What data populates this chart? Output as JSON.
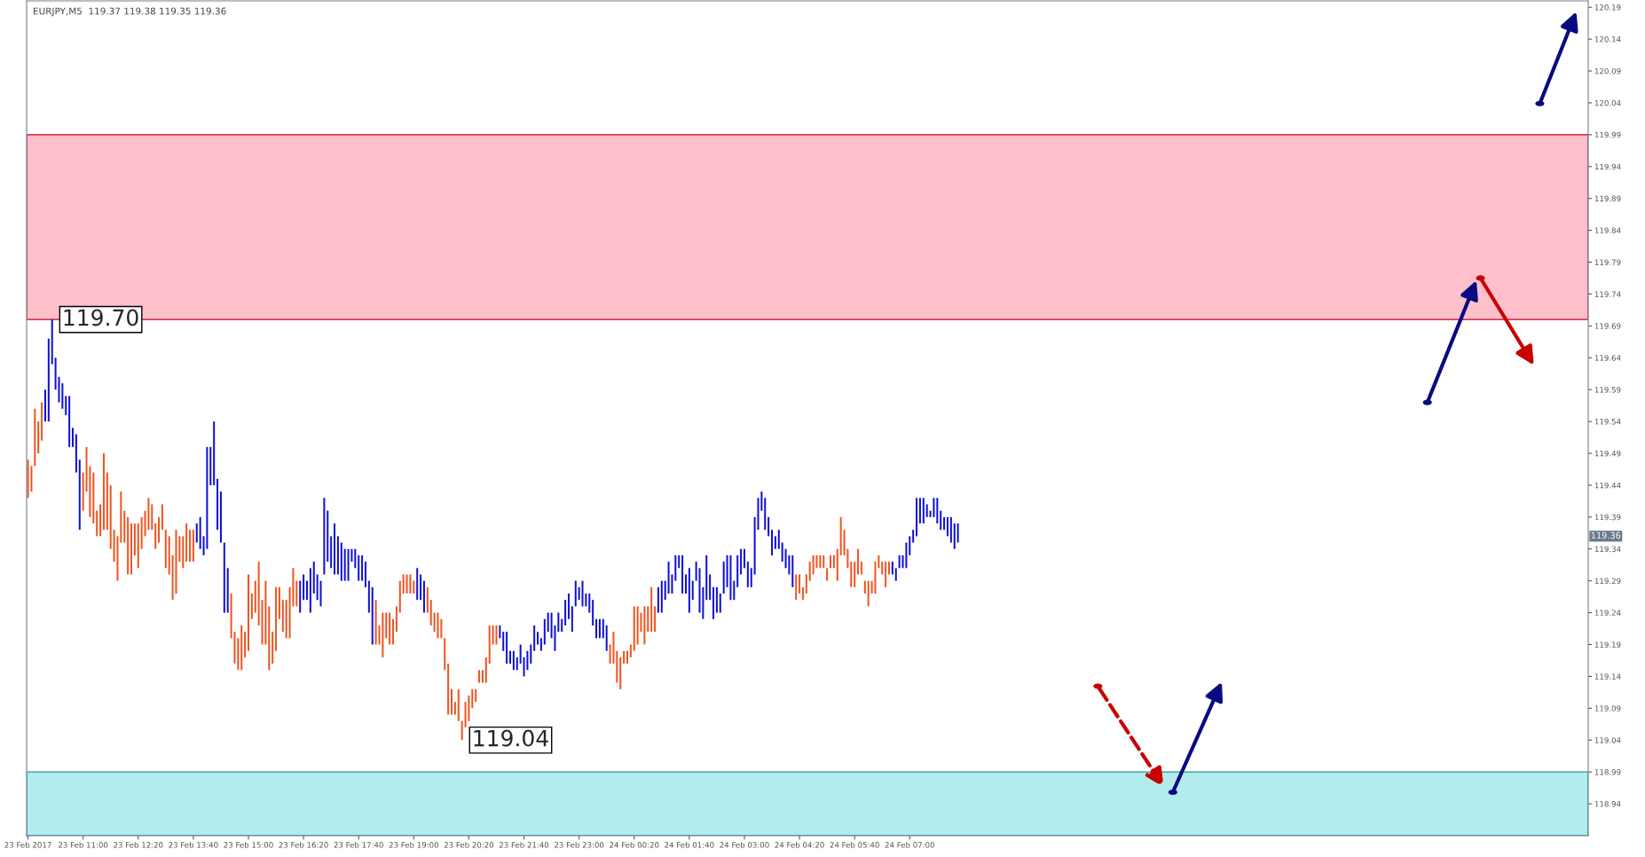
{
  "chart_data": {
    "type": "bar",
    "title": "EURJPY,M5  119.37 119.38 119.35 119.36",
    "ylim": [
      118.89,
      120.2
    ],
    "yticks": [
      118.94,
      118.99,
      119.04,
      119.09,
      119.14,
      119.19,
      119.24,
      119.29,
      119.34,
      119.39,
      119.44,
      119.49,
      119.54,
      119.59,
      119.64,
      119.69,
      119.74,
      119.79,
      119.84,
      119.89,
      119.94,
      119.99,
      120.04,
      120.09,
      120.14,
      120.19
    ],
    "xlim": [
      "2017-02-23T09:38",
      "2017-02-24T23:25"
    ],
    "xticks": [
      {
        "value": "2017-02-23T09:40",
        "label": "23 Feb 2017"
      },
      {
        "value": "2017-02-23T11:00",
        "label": "23 Feb 11:00"
      },
      {
        "value": "2017-02-23T12:20",
        "label": "23 Feb 12:20"
      },
      {
        "value": "2017-02-23T13:40",
        "label": "23 Feb 13:40"
      },
      {
        "value": "2017-02-23T15:00",
        "label": "23 Feb 15:00"
      },
      {
        "value": "2017-02-23T16:20",
        "label": "23 Feb 16:20"
      },
      {
        "value": "2017-02-23T17:40",
        "label": "23 Feb 17:40"
      },
      {
        "value": "2017-02-23T19:00",
        "label": "23 Feb 19:00"
      },
      {
        "value": "2017-02-23T20:20",
        "label": "23 Feb 20:20"
      },
      {
        "value": "2017-02-23T21:40",
        "label": "23 Feb 21:40"
      },
      {
        "value": "2017-02-23T23:00",
        "label": "23 Feb 23:00"
      },
      {
        "value": "2017-02-24T00:20",
        "label": "24 Feb 00:20"
      },
      {
        "value": "2017-02-24T01:40",
        "label": "24 Feb 01:40"
      },
      {
        "value": "2017-02-24T03:00",
        "label": "24 Feb 03:00"
      },
      {
        "value": "2017-02-24T04:20",
        "label": "24 Feb 04:20"
      },
      {
        "value": "2017-02-24T05:40",
        "label": "24 Feb 05:40"
      },
      {
        "value": "2017-02-24T07:00",
        "label": "24 Feb 07:00"
      }
    ],
    "bands": [
      {
        "axis": "y",
        "from": 119.7,
        "to": 119.99,
        "color": "#ffc0cb"
      },
      {
        "axis": "y",
        "from": 118.89,
        "to": 118.99,
        "color": "#b2ecee"
      }
    ],
    "annotations": [
      {
        "text": "119.70",
        "x": "2017-02-23T10:15",
        "y": 119.7
      },
      {
        "text": "119.04",
        "x": "2017-02-23T20:10",
        "y": 119.04
      },
      {
        "text": "119.36",
        "y": 119.36
      }
    ],
    "series": [
      {
        "color": "#ee5522",
        "x": [
          "2017-02-23T09:40",
          "2017-02-23T09:45",
          "2017-02-23T09:50",
          "2017-02-23T09:55",
          "2017-02-23T10:00"
        ],
        "base": [
          119.42,
          119.43,
          119.47,
          119.49,
          119.51
        ],
        "values": [
          0.06,
          0.04,
          0.09,
          0.05,
          0.06
        ]
      },
      {
        "color": "#1010d8",
        "x": [
          "2017-02-23T10:05",
          "2017-02-23T10:10",
          "2017-02-23T10:15",
          "2017-02-23T10:20",
          "2017-02-23T10:25",
          "2017-02-23T10:30",
          "2017-02-23T10:35",
          "2017-02-23T10:40",
          "2017-02-23T10:45",
          "2017-02-23T10:50",
          "2017-02-23T10:55"
        ],
        "base": [
          119.54,
          119.54,
          119.63,
          119.59,
          119.57,
          119.56,
          119.55,
          119.5,
          119.5,
          119.46,
          119.37
        ],
        "values": [
          0.05,
          0.13,
          0.07,
          0.05,
          0.04,
          0.04,
          0.03,
          0.08,
          0.03,
          0.06,
          0.11
        ]
      },
      {
        "color": "#ee5522",
        "x": [
          "2017-02-23T11:00",
          "2017-02-23T11:05",
          "2017-02-23T11:10",
          "2017-02-23T11:15",
          "2017-02-23T11:20",
          "2017-02-23T11:25",
          "2017-02-23T11:30",
          "2017-02-23T11:35",
          "2017-02-23T11:40",
          "2017-02-23T11:45",
          "2017-02-23T11:50",
          "2017-02-23T11:55",
          "2017-02-23T12:00",
          "2017-02-23T12:05",
          "2017-02-23T12:10",
          "2017-02-23T12:15",
          "2017-02-23T12:20",
          "2017-02-23T12:25",
          "2017-02-23T12:30",
          "2017-02-23T12:35",
          "2017-02-23T12:40",
          "2017-02-23T12:45",
          "2017-02-23T12:50",
          "2017-02-23T12:55",
          "2017-02-23T13:00",
          "2017-02-23T13:05",
          "2017-02-23T13:10",
          "2017-02-23T13:15",
          "2017-02-23T13:20",
          "2017-02-23T13:25",
          "2017-02-23T13:30",
          "2017-02-23T13:35",
          "2017-02-23T13:40"
        ],
        "base": [
          119.4,
          119.43,
          119.39,
          119.38,
          119.36,
          119.36,
          119.37,
          119.37,
          119.34,
          119.32,
          119.29,
          119.35,
          119.35,
          119.3,
          119.3,
          119.33,
          119.31,
          119.34,
          119.36,
          119.37,
          119.37,
          119.34,
          119.35,
          119.37,
          119.31,
          119.3,
          119.26,
          119.27,
          119.32,
          119.31,
          119.32,
          119.32,
          119.32
        ],
        "values": [
          0.06,
          0.07,
          0.08,
          0.08,
          0.04,
          0.05,
          0.12,
          0.09,
          0.1,
          0.05,
          0.07,
          0.08,
          0.05,
          0.09,
          0.08,
          0.05,
          0.07,
          0.05,
          0.04,
          0.05,
          0.04,
          0.04,
          0.04,
          0.04,
          0.06,
          0.06,
          0.07,
          0.1,
          0.04,
          0.05,
          0.06,
          0.05,
          0.05
        ]
      },
      {
        "color": "#1010d8",
        "x": [
          "2017-02-23T13:45",
          "2017-02-23T13:50",
          "2017-02-23T13:55",
          "2017-02-23T14:00",
          "2017-02-23T14:05",
          "2017-02-23T14:10",
          "2017-02-23T14:15",
          "2017-02-23T14:20",
          "2017-02-23T14:25",
          "2017-02-23T14:30"
        ],
        "base": [
          119.35,
          119.34,
          119.33,
          119.34,
          119.44,
          119.44,
          119.37,
          119.35,
          119.24,
          119.24
        ],
        "values": [
          0.03,
          0.05,
          0.03,
          0.16,
          0.06,
          0.1,
          0.08,
          0.08,
          0.11,
          0.07
        ]
      },
      {
        "color": "#ee5522",
        "x": [
          "2017-02-23T14:35",
          "2017-02-23T14:40",
          "2017-02-23T14:45",
          "2017-02-23T14:50",
          "2017-02-23T14:55",
          "2017-02-23T15:00",
          "2017-02-23T15:05",
          "2017-02-23T15:10",
          "2017-02-23T15:15",
          "2017-02-23T15:20",
          "2017-02-23T15:25",
          "2017-02-23T15:30",
          "2017-02-23T15:35",
          "2017-02-23T15:40",
          "2017-02-23T15:45",
          "2017-02-23T15:50",
          "2017-02-23T15:55",
          "2017-02-23T16:00",
          "2017-02-23T16:05",
          "2017-02-23T16:10"
        ],
        "base": [
          119.2,
          119.16,
          119.15,
          119.15,
          119.17,
          119.18,
          119.23,
          119.24,
          119.22,
          119.19,
          119.19,
          119.15,
          119.16,
          119.18,
          119.23,
          119.21,
          119.2,
          119.2,
          119.25,
          119.25
        ],
        "values": [
          0.07,
          0.05,
          0.05,
          0.07,
          0.04,
          0.12,
          0.04,
          0.05,
          0.1,
          0.07,
          0.1,
          0.1,
          0.05,
          0.1,
          0.05,
          0.05,
          0.06,
          0.08,
          0.06,
          0.04
        ]
      },
      {
        "color": "#1010d8",
        "x": [
          "2017-02-23T16:15",
          "2017-02-23T16:20",
          "2017-02-23T16:25",
          "2017-02-23T16:30",
          "2017-02-23T16:35",
          "2017-02-23T16:40",
          "2017-02-23T16:45",
          "2017-02-23T16:50",
          "2017-02-23T16:55",
          "2017-02-23T17:00",
          "2017-02-23T17:05",
          "2017-02-23T17:10",
          "2017-02-23T17:15",
          "2017-02-23T17:20",
          "2017-02-23T17:25",
          "2017-02-23T17:30",
          "2017-02-23T17:35",
          "2017-02-23T17:40",
          "2017-02-23T17:45",
          "2017-02-23T17:50",
          "2017-02-23T17:55",
          "2017-02-23T18:00"
        ],
        "base": [
          119.24,
          119.26,
          119.26,
          119.24,
          119.27,
          119.26,
          119.25,
          119.3,
          119.32,
          119.31,
          119.3,
          119.3,
          119.29,
          119.29,
          119.29,
          119.32,
          119.31,
          119.29,
          119.29,
          119.28,
          119.24,
          119.19
        ],
        "values": [
          0.05,
          0.04,
          0.03,
          0.07,
          0.05,
          0.04,
          0.04,
          0.12,
          0.08,
          0.05,
          0.08,
          0.06,
          0.06,
          0.05,
          0.05,
          0.02,
          0.03,
          0.04,
          0.04,
          0.04,
          0.05,
          0.09
        ]
      },
      {
        "color": "#ee5522",
        "x": [
          "2017-02-23T18:05",
          "2017-02-23T18:10",
          "2017-02-23T18:15",
          "2017-02-23T18:20",
          "2017-02-23T18:25",
          "2017-02-23T18:30",
          "2017-02-23T18:35",
          "2017-02-23T18:40",
          "2017-02-23T18:45",
          "2017-02-23T18:50",
          "2017-02-23T18:55",
          "2017-02-23T19:00"
        ],
        "base": [
          119.19,
          119.19,
          119.17,
          119.2,
          119.19,
          119.19,
          119.21,
          119.24,
          119.27,
          119.27,
          119.27,
          119.27
        ],
        "values": [
          0.07,
          0.03,
          0.07,
          0.04,
          0.05,
          0.04,
          0.04,
          0.05,
          0.03,
          0.03,
          0.03,
          0.02
        ]
      },
      {
        "color": "#1010d8",
        "x": [
          "2017-02-23T19:05",
          "2017-02-23T19:10",
          "2017-02-23T19:15"
        ],
        "base": [
          119.26,
          119.26,
          119.24
        ],
        "values": [
          0.05,
          0.04,
          0.05
        ]
      },
      {
        "color": "#ee5522",
        "x": [
          "2017-02-23T19:20",
          "2017-02-23T19:25",
          "2017-02-23T19:30",
          "2017-02-23T19:35",
          "2017-02-23T19:40",
          "2017-02-23T19:45",
          "2017-02-23T19:50",
          "2017-02-23T19:55",
          "2017-02-23T20:00",
          "2017-02-23T20:05",
          "2017-02-23T20:10",
          "2017-02-23T20:15",
          "2017-02-23T20:20",
          "2017-02-23T20:25",
          "2017-02-23T20:30",
          "2017-02-23T20:35",
          "2017-02-23T20:40",
          "2017-02-23T20:45",
          "2017-02-23T20:50",
          "2017-02-23T20:55",
          "2017-02-23T21:00"
        ],
        "base": [
          119.24,
          119.22,
          119.21,
          119.2,
          119.2,
          119.15,
          119.08,
          119.08,
          119.08,
          119.07,
          119.04,
          119.06,
          119.07,
          119.09,
          119.1,
          119.13,
          119.13,
          119.13,
          119.16,
          119.19,
          119.19
        ],
        "values": [
          0.04,
          0.04,
          0.03,
          0.04,
          0.03,
          0.05,
          0.08,
          0.04,
          0.02,
          0.05,
          0.03,
          0.04,
          0.04,
          0.03,
          0.02,
          0.02,
          0.02,
          0.04,
          0.06,
          0.03,
          0.03
        ]
      },
      {
        "color": "#1010d8",
        "x": [
          "2017-02-23T21:05",
          "2017-02-23T21:10",
          "2017-02-23T21:15",
          "2017-02-23T21:20",
          "2017-02-23T21:25",
          "2017-02-23T21:30",
          "2017-02-23T21:35",
          "2017-02-23T21:40",
          "2017-02-23T21:45",
          "2017-02-23T21:50",
          "2017-02-23T21:55",
          "2017-02-23T22:00",
          "2017-02-23T22:05",
          "2017-02-23T22:10",
          "2017-02-23T22:15",
          "2017-02-23T22:20",
          "2017-02-23T22:25",
          "2017-02-23T22:30",
          "2017-02-23T22:35",
          "2017-02-23T22:40",
          "2017-02-23T22:45",
          "2017-02-23T22:50",
          "2017-02-23T22:55",
          "2017-02-23T23:00",
          "2017-02-23T23:05",
          "2017-02-23T23:10",
          "2017-02-23T23:15",
          "2017-02-23T23:20",
          "2017-02-23T23:25",
          "2017-02-23T23:30",
          "2017-02-23T23:35",
          "2017-02-23T23:40"
        ],
        "base": [
          119.2,
          119.18,
          119.16,
          119.16,
          119.15,
          119.15,
          119.16,
          119.14,
          119.15,
          119.16,
          119.18,
          119.19,
          119.18,
          119.19,
          119.21,
          119.2,
          119.18,
          119.21,
          119.21,
          119.22,
          119.23,
          119.21,
          119.25,
          119.26,
          119.25,
          119.25,
          119.24,
          119.22,
          119.2,
          119.2,
          119.2,
          119.18
        ],
        "values": [
          0.02,
          0.03,
          0.05,
          0.02,
          0.03,
          0.02,
          0.03,
          0.03,
          0.03,
          0.03,
          0.04,
          0.02,
          0.02,
          0.04,
          0.03,
          0.04,
          0.04,
          0.03,
          0.02,
          0.04,
          0.04,
          0.04,
          0.04,
          0.02,
          0.04,
          0.02,
          0.03,
          0.04,
          0.03,
          0.03,
          0.03,
          0.04
        ]
      },
      {
        "color": "#ee5522",
        "x": [
          "2017-02-23T23:45",
          "2017-02-23T23:50",
          "2017-02-23T23:55",
          "2017-02-24T00:00",
          "2017-02-24T00:05",
          "2017-02-24T00:10",
          "2017-02-24T00:15",
          "2017-02-24T00:20",
          "2017-02-24T00:25",
          "2017-02-24T00:30",
          "2017-02-24T00:35",
          "2017-02-24T00:40",
          "2017-02-24T00:45",
          "2017-02-24T00:50"
        ],
        "base": [
          119.16,
          119.16,
          119.13,
          119.12,
          119.16,
          119.16,
          119.17,
          119.18,
          119.19,
          119.21,
          119.19,
          119.21,
          119.21,
          119.21
        ],
        "values": [
          0.03,
          0.05,
          0.05,
          0.05,
          0.02,
          0.02,
          0.02,
          0.07,
          0.06,
          0.03,
          0.06,
          0.04,
          0.07,
          0.04
        ]
      },
      {
        "color": "#1010d8",
        "x": [
          "2017-02-24T00:55",
          "2017-02-24T01:00",
          "2017-02-24T01:05",
          "2017-02-24T01:10",
          "2017-02-24T01:15",
          "2017-02-24T01:20",
          "2017-02-24T01:25",
          "2017-02-24T01:30",
          "2017-02-24T01:35",
          "2017-02-24T01:40",
          "2017-02-24T01:45",
          "2017-02-24T01:50",
          "2017-02-24T01:55",
          "2017-02-24T02:00",
          "2017-02-24T02:05",
          "2017-02-24T02:10",
          "2017-02-24T02:15",
          "2017-02-24T02:20",
          "2017-02-24T02:25",
          "2017-02-24T02:30",
          "2017-02-24T02:35",
          "2017-02-24T02:40",
          "2017-02-24T02:45",
          "2017-02-24T02:50",
          "2017-02-24T02:55",
          "2017-02-24T03:00",
          "2017-02-24T03:05",
          "2017-02-24T03:10",
          "2017-02-24T03:15",
          "2017-02-24T03:20",
          "2017-02-24T03:25",
          "2017-02-24T03:30",
          "2017-02-24T03:35",
          "2017-02-24T03:40",
          "2017-02-24T03:45",
          "2017-02-24T03:50",
          "2017-02-24T03:55",
          "2017-02-24T04:00",
          "2017-02-24T04:05",
          "2017-02-24T04:10"
        ],
        "base": [
          119.24,
          119.24,
          119.26,
          119.27,
          119.27,
          119.29,
          119.31,
          119.27,
          119.27,
          119.24,
          119.26,
          119.29,
          119.24,
          119.23,
          119.26,
          119.26,
          119.23,
          119.24,
          119.24,
          119.27,
          119.28,
          119.26,
          119.26,
          119.28,
          119.3,
          119.31,
          119.28,
          119.28,
          119.3,
          119.37,
          119.4,
          119.37,
          119.36,
          119.33,
          119.34,
          119.34,
          119.32,
          119.31,
          119.3,
          119.28
        ],
        "values": [
          0.04,
          0.05,
          0.03,
          0.05,
          0.03,
          0.04,
          0.02,
          0.06,
          0.03,
          0.07,
          0.03,
          0.03,
          0.07,
          0.05,
          0.07,
          0.04,
          0.05,
          0.04,
          0.03,
          0.05,
          0.05,
          0.07,
          0.03,
          0.05,
          0.04,
          0.03,
          0.04,
          0.03,
          0.09,
          0.05,
          0.03,
          0.05,
          0.03,
          0.04,
          0.02,
          0.03,
          0.03,
          0.03,
          0.03,
          0.05
        ]
      },
      {
        "color": "#ee5522",
        "x": [
          "2017-02-24T04:15",
          "2017-02-24T04:20",
          "2017-02-24T04:25",
          "2017-02-24T04:30",
          "2017-02-24T04:35",
          "2017-02-24T04:40",
          "2017-02-24T04:45",
          "2017-02-24T04:50",
          "2017-02-24T04:55",
          "2017-02-24T05:00",
          "2017-02-24T05:05",
          "2017-02-24T05:10",
          "2017-02-24T05:15",
          "2017-02-24T05:20",
          "2017-02-24T05:25",
          "2017-02-24T05:30",
          "2017-02-24T05:35",
          "2017-02-24T05:40",
          "2017-02-24T05:45",
          "2017-02-24T05:50",
          "2017-02-24T05:55",
          "2017-02-24T06:00",
          "2017-02-24T06:05",
          "2017-02-24T06:10",
          "2017-02-24T06:15",
          "2017-02-24T06:20",
          "2017-02-24T06:25",
          "2017-02-24T06:30"
        ],
        "base": [
          119.26,
          119.27,
          119.26,
          119.27,
          119.29,
          119.3,
          119.31,
          119.31,
          119.31,
          119.29,
          119.31,
          119.31,
          119.29,
          119.33,
          119.33,
          119.31,
          119.28,
          119.28,
          119.3,
          119.3,
          119.27,
          119.25,
          119.27,
          119.27,
          119.31,
          119.3,
          119.28,
          119.3
        ],
        "values": [
          0.04,
          0.03,
          0.02,
          0.03,
          0.03,
          0.03,
          0.02,
          0.02,
          0.02,
          0.02,
          0.02,
          0.02,
          0.05,
          0.06,
          0.04,
          0.03,
          0.04,
          0.04,
          0.04,
          0.02,
          0.02,
          0.04,
          0.02,
          0.05,
          0.02,
          0.02,
          0.04,
          0.02
        ]
      },
      {
        "color": "#1010d8",
        "x": [
          "2017-02-24T06:35",
          "2017-02-24T06:40",
          "2017-02-24T06:45",
          "2017-02-24T06:50",
          "2017-02-24T06:55",
          "2017-02-24T07:00",
          "2017-02-24T07:05",
          "2017-02-24T07:10",
          "2017-02-24T07:15",
          "2017-02-24T07:20",
          "2017-02-24T07:25",
          "2017-02-24T07:30",
          "2017-02-24T07:35",
          "2017-02-24T07:40",
          "2017-02-24T07:45",
          "2017-02-24T07:50",
          "2017-02-24T07:55",
          "2017-02-24T08:00",
          "2017-02-24T08:05",
          "2017-02-24T08:10"
        ],
        "base": [
          119.3,
          119.29,
          119.31,
          119.31,
          119.31,
          119.33,
          119.35,
          119.36,
          119.38,
          119.38,
          119.39,
          119.39,
          119.39,
          119.38,
          119.37,
          119.37,
          119.36,
          119.35,
          119.34,
          119.35
        ],
        "values": [
          0.02,
          0.02,
          0.02,
          0.02,
          0.04,
          0.03,
          0.02,
          0.06,
          0.04,
          0.04,
          0.02,
          0.01,
          0.03,
          0.04,
          0.03,
          0.02,
          0.03,
          0.04,
          0.04,
          0.03
        ]
      }
    ]
  }
}
